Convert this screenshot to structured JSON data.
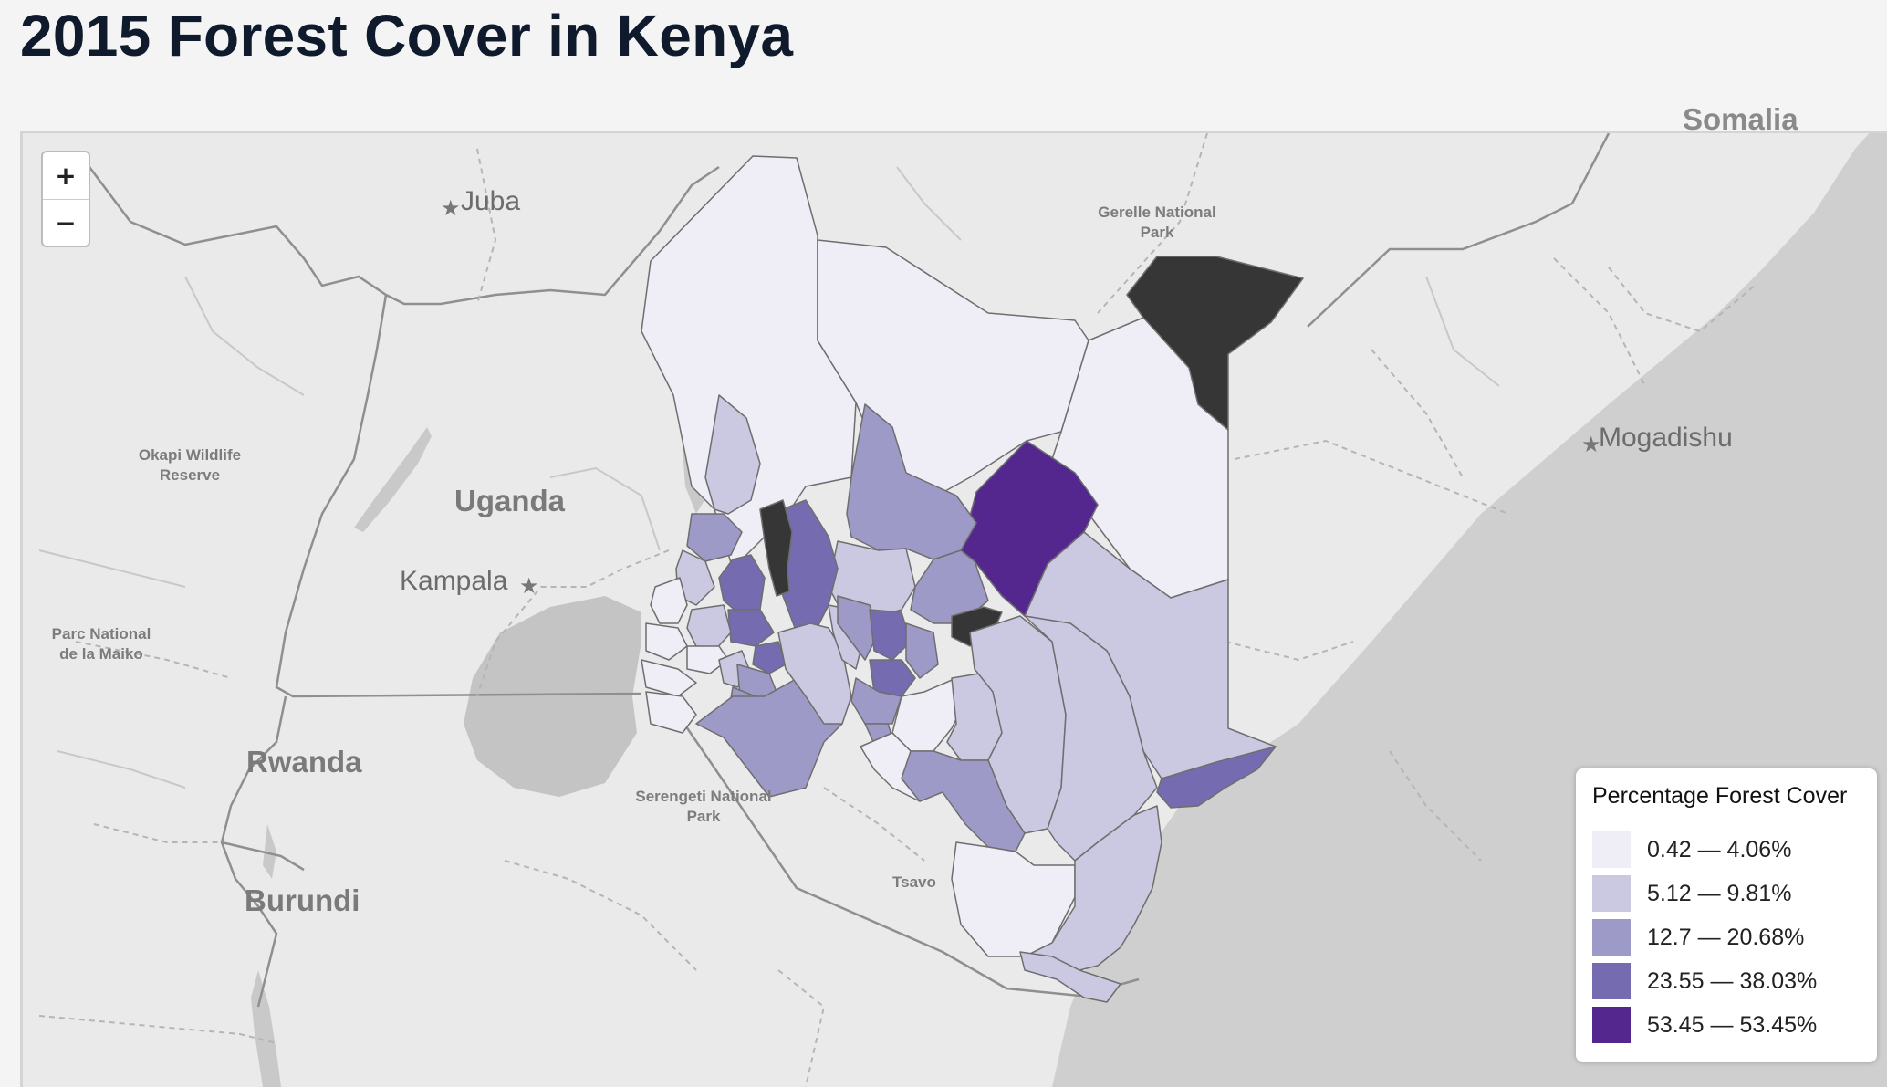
{
  "title": "2015 Forest Cover in Kenya",
  "zoom": {
    "in_label": "+",
    "out_label": "−"
  },
  "map_labels": {
    "juba": "Juba",
    "gerelle": "Gerelle National Park",
    "somalia": "Somalia",
    "okapi": "Okapi Wildlife Reserve",
    "uganda": "Uganda",
    "kampala": "Kampala",
    "mogadishu": "Mogadishu",
    "maiko": "Parc National de la Maiko",
    "rwanda": "Rwanda",
    "serengeti": "Serengeti National Park",
    "tsavo": "Tsavo",
    "burundi": "Burundi"
  },
  "legend": {
    "title": "Percentage Forest Cover",
    "items": [
      {
        "label": "0.42 — 4.06%",
        "color": "#efedf5"
      },
      {
        "label": "5.12 — 9.81%",
        "color": "#cbc8e2"
      },
      {
        "label": "12.7 — 20.68%",
        "color": "#9e9ac8"
      },
      {
        "label": "23.55 — 38.03%",
        "color": "#756bb1"
      },
      {
        "label": "53.45 — 53.45%",
        "color": "#54278f"
      }
    ]
  },
  "no_data_color": "#363636",
  "basemap": {
    "land": "#eaeaea",
    "water": "#cfcfcf",
    "lake": "#c4c4c4"
  }
}
